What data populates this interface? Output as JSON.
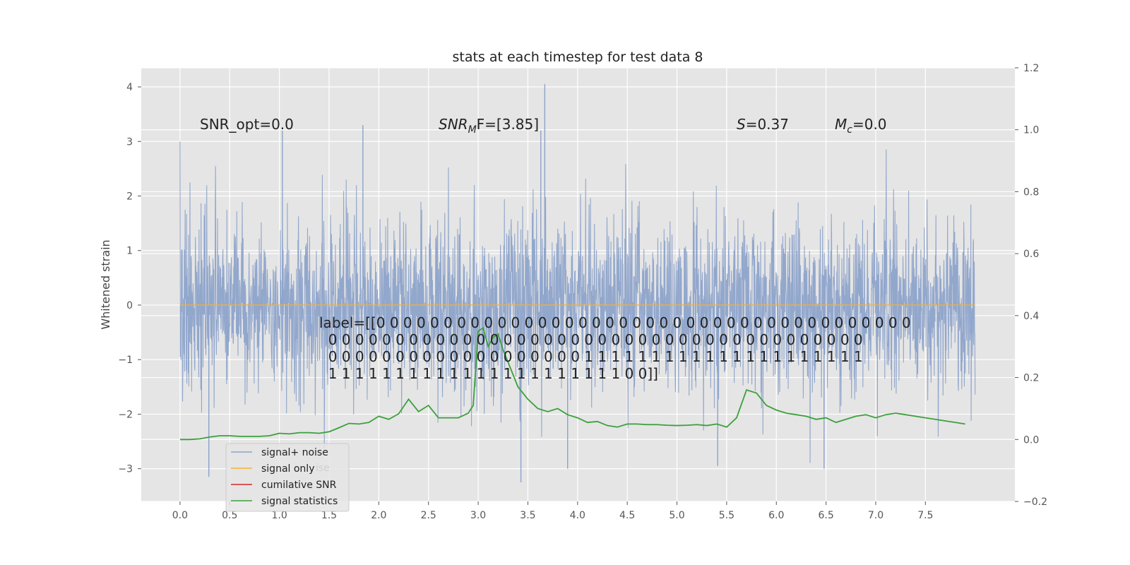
{
  "title": "stats at each timestep for test data 8",
  "ylabel_left": "Whitened strain",
  "annotations": {
    "snr_opt": "SNR_opt=0.0",
    "snr_mf_main": "SNR",
    "snr_mf_sub": "M",
    "snr_mf_rest": "F=[3.85]",
    "s_main": "S",
    "s_rest": "=0.37",
    "mc_main": "M",
    "mc_sub": "c",
    "mc_rest": "=0.0"
  },
  "label_block": [
    "label=[[0 0 0 0 0 0 0 0 0 0 0 0 0 0 0 0 0 0 0 0 0 0 0 0 0 0 0 0 0 0 0 0 0 0 0 0 0 0 0 0",
    "  0 0 0 0 0 0 0 0 0 0 0 0 0 0 0 0 0 0 0 0 0 0 0 0 0 0 0 0 0 0 0 0 0 0 0 0 0 0 0 0",
    "  0 0 0 0 0 0 0 0 0 0 0 0 0 0 0 0 0 0 0 1 1 1 1 1 1 1 1 1 1 1 1 1 1 1 1 1 1 1 1 1",
    "  1 1 1 1 1 1 1 1 1 1 1 1 1 1 1 1 1 1 1 1 1 1 0 0]]"
  ],
  "legend": [
    {
      "label": "signal+ noise",
      "color": "#8da3ca"
    },
    {
      "label": "signal only",
      "color": "#f2b134"
    },
    {
      "label": "cumilative SNR",
      "color": "#d62728"
    },
    {
      "label": "signal statistics",
      "color": "#3ca03c"
    }
  ],
  "legend_ghost": "ise",
  "colors": {
    "axes_bg": "#e5e5e5",
    "grid": "#ffffff",
    "noise": "#8da3ca",
    "signal": "#f2b134",
    "stats": "#3ca03c"
  },
  "chart_data": {
    "type": "line",
    "title": "stats at each timestep for test data 8",
    "xlabel": "",
    "ylabel": "Whitened strain",
    "xlim": [
      -0.39,
      8.4
    ],
    "ylim": [
      -3.6,
      4.35
    ],
    "y2lim": [
      -0.2,
      1.2
    ],
    "x_ticks": [
      0.0,
      0.5,
      1.0,
      1.5,
      2.0,
      2.5,
      3.0,
      3.5,
      4.0,
      4.5,
      5.0,
      5.5,
      6.0,
      6.5,
      7.0,
      7.5
    ],
    "x_tick_labels": [
      "0.0",
      "0.5",
      "1.0",
      "1.5",
      "2.0",
      "2.5",
      "3.0",
      "3.5",
      "4.0",
      "4.5",
      "5.0",
      "5.5",
      "6.0",
      "6.5",
      "7.0",
      "7.5"
    ],
    "y_ticks": [
      -3,
      -2,
      -1,
      0,
      1,
      2,
      3,
      4
    ],
    "y_tick_labels": [
      "−3",
      "−2",
      "−1",
      "0",
      "1",
      "2",
      "3",
      "4"
    ],
    "y2_ticks": [
      -0.2,
      0.0,
      0.2,
      0.4,
      0.6,
      0.8,
      1.0,
      1.2
    ],
    "y2_tick_labels": [
      "−0.2",
      "0.0",
      "0.2",
      "0.4",
      "0.6",
      "0.8",
      "1.0",
      "1.2"
    ],
    "grid": true,
    "legend_position": "lower-left",
    "series": [
      {
        "name": "signal+ noise",
        "axis": "left",
        "x_range": [
          0.0,
          8.0
        ],
        "envelope_note_values": {
          "typical_max": [
            1.2,
            2.6
          ],
          "typical_min": [
            -2.6,
            -1.2
          ],
          "peaks": [
            {
              "x": 1.03,
              "y": 3.2
            },
            {
              "x": 1.84,
              "y": 3.3
            },
            {
              "x": 3.67,
              "y": 4.05
            },
            {
              "x": 3.63,
              "y": 3.2
            },
            {
              "x": 0.29,
              "y": -3.15
            },
            {
              "x": 3.43,
              "y": -3.25
            },
            {
              "x": 3.9,
              "y": -3.0
            },
            {
              "x": 6.48,
              "y": -3.0
            },
            {
              "x": 5.41,
              "y": -2.95
            }
          ]
        }
      },
      {
        "name": "signal only",
        "axis": "left",
        "x": [
          0.0,
          8.0
        ],
        "y": [
          0.0,
          0.0
        ]
      },
      {
        "name": "cumilative SNR",
        "axis": "left",
        "x": [],
        "y": []
      },
      {
        "name": "signal statistics",
        "axis": "right",
        "x": [
          0.0,
          0.1,
          0.2,
          0.3,
          0.4,
          0.5,
          0.6,
          0.7,
          0.8,
          0.9,
          1.0,
          1.1,
          1.2,
          1.3,
          1.4,
          1.5,
          1.6,
          1.7,
          1.8,
          1.9,
          2.0,
          2.1,
          2.2,
          2.3,
          2.4,
          2.5,
          2.6,
          2.7,
          2.8,
          2.9,
          2.95,
          3.0,
          3.05,
          3.1,
          3.15,
          3.2,
          3.25,
          3.3,
          3.4,
          3.5,
          3.6,
          3.7,
          3.8,
          3.9,
          4.0,
          4.1,
          4.2,
          4.3,
          4.4,
          4.5,
          4.6,
          4.7,
          4.8,
          4.9,
          5.0,
          5.1,
          5.2,
          5.3,
          5.4,
          5.5,
          5.6,
          5.7,
          5.8,
          5.9,
          6.0,
          6.1,
          6.2,
          6.3,
          6.4,
          6.5,
          6.6,
          6.7,
          6.8,
          6.9,
          7.0,
          7.1,
          7.2,
          7.3,
          7.4,
          7.5,
          7.6,
          7.7,
          7.8,
          7.9
        ],
        "y": [
          0.0,
          0.0,
          0.002,
          0.008,
          0.012,
          0.012,
          0.01,
          0.01,
          0.01,
          0.012,
          0.02,
          0.018,
          0.022,
          0.022,
          0.02,
          0.025,
          0.038,
          0.052,
          0.05,
          0.055,
          0.075,
          0.065,
          0.083,
          0.13,
          0.09,
          0.11,
          0.07,
          0.07,
          0.07,
          0.085,
          0.11,
          0.35,
          0.36,
          0.3,
          0.33,
          0.34,
          0.29,
          0.25,
          0.17,
          0.13,
          0.1,
          0.09,
          0.1,
          0.08,
          0.07,
          0.055,
          0.058,
          0.045,
          0.04,
          0.05,
          0.05,
          0.048,
          0.048,
          0.046,
          0.045,
          0.046,
          0.048,
          0.045,
          0.05,
          0.04,
          0.07,
          0.16,
          0.15,
          0.11,
          0.095,
          0.085,
          0.08,
          0.075,
          0.065,
          0.07,
          0.055,
          0.065,
          0.075,
          0.08,
          0.07,
          0.08,
          0.085,
          0.08,
          0.075,
          0.07,
          0.065,
          0.06,
          0.055,
          0.05
        ]
      }
    ]
  }
}
